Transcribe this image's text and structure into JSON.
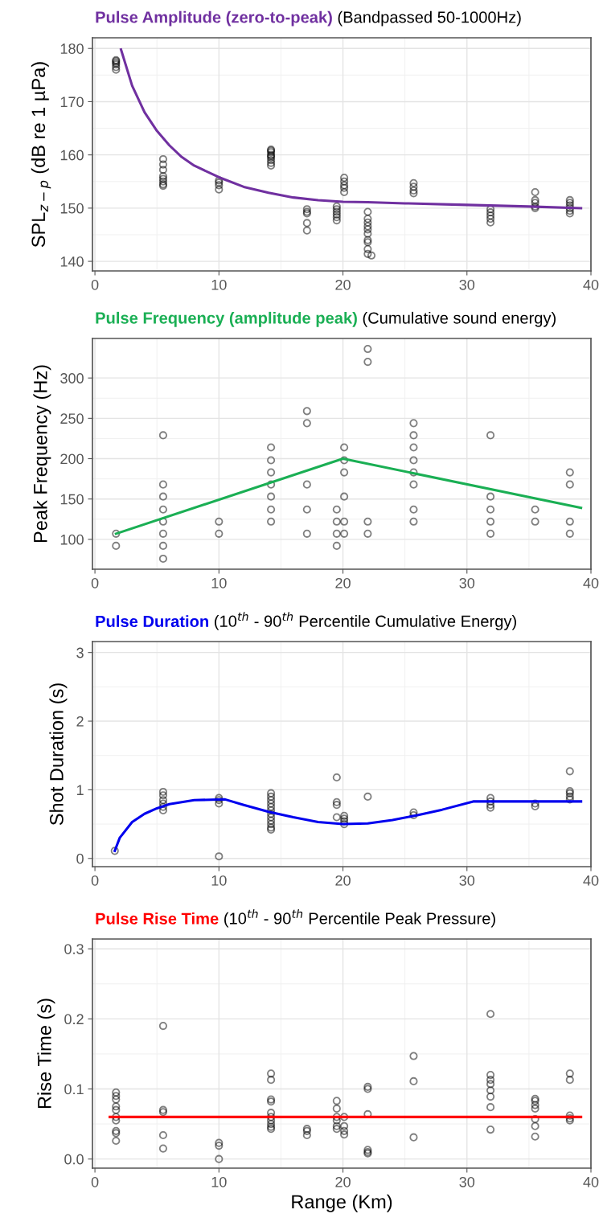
{
  "chart_data": [
    {
      "type": "scatter",
      "title": "Pulse Amplitude (zero-to-peak)",
      "subtitle": "(Bandpassed 50-1000Hz)",
      "ylabel": "SPL$_{z−p}$ (dB re 1 µPa)",
      "xlim": [
        -0.2,
        40
      ],
      "xticks": [
        0,
        10,
        20,
        30,
        40
      ],
      "ylim": [
        138.2,
        182
      ],
      "yticks": [
        140,
        150,
        160,
        170,
        180
      ],
      "grid": true,
      "series": [
        {
          "marker": "circle",
          "color": "#000000",
          "x": [
            1.7,
            1.7,
            1.7,
            1.7,
            1.7,
            1.7,
            5.5,
            5.5,
            5.5,
            5.5,
            5.5,
            5.5,
            5.5,
            5.5,
            10,
            10,
            10,
            10,
            14.2,
            14.2,
            14.2,
            14.2,
            14.2,
            14.2,
            14.2,
            14.2,
            14.2,
            17.1,
            17.1,
            17.1,
            17.1,
            17.1,
            19.5,
            19.5,
            19.5,
            19.5,
            19.5,
            19.5,
            20.1,
            20.1,
            20.1,
            20.1,
            20.1,
            22,
            22,
            22,
            22,
            22,
            22,
            22,
            22,
            22,
            22,
            22.3,
            25.7,
            25.7,
            25.7,
            25.7,
            31.9,
            31.9,
            31.9,
            31.9,
            31.9,
            35.5,
            35.5,
            35.5,
            35.5,
            35.5,
            38.3,
            38.3,
            38.3,
            38.3,
            38.3,
            38.3
          ],
          "values": [
            176,
            176.5,
            177,
            177.3,
            177.6,
            177.8,
            159.2,
            158.2,
            157.2,
            156,
            155.5,
            155,
            154.5,
            154.2,
            155.2,
            154.8,
            154.3,
            153.5,
            161,
            160.5,
            160,
            159.5,
            159,
            158.5,
            158,
            160.8,
            159.8,
            149.8,
            149.3,
            149,
            147.2,
            145.8,
            150.3,
            149.8,
            149.3,
            148.8,
            148.3,
            147.7,
            155.7,
            155,
            154.3,
            153.8,
            153,
            149.3,
            148,
            147.3,
            146.6,
            146,
            145.2,
            144,
            143.6,
            142.3,
            141.4,
            141.1,
            154.7,
            154,
            153.3,
            152.8,
            149.8,
            149.2,
            148.6,
            148,
            147.3,
            153,
            151.5,
            151,
            150.3,
            150,
            151.5,
            151,
            150.5,
            150,
            149.5,
            149
          ]
        },
        {
          "type": "line",
          "color": "#7030a0",
          "x": [
            2.1,
            3,
            4,
            5,
            6,
            7,
            8,
            10,
            12,
            14,
            16,
            18,
            20,
            22,
            25,
            30,
            35,
            39.2
          ],
          "values": [
            179.8,
            173,
            168,
            164.5,
            161.8,
            159.6,
            158,
            155.8,
            154,
            152.9,
            152,
            151.5,
            151.2,
            151.1,
            150.9,
            150.6,
            150.3,
            150
          ]
        }
      ]
    },
    {
      "type": "scatter",
      "title": "Pulse Frequency (amplitude peak)",
      "subtitle": "(Cumulative sound energy)",
      "ylabel": "Peak Frequency (Hz)",
      "xlim": [
        -0.2,
        40
      ],
      "xticks": [
        0,
        10,
        20,
        30,
        40
      ],
      "ylim": [
        63,
        349
      ],
      "yticks": [
        100,
        150,
        200,
        250,
        300
      ],
      "grid": true,
      "series": [
        {
          "marker": "circle",
          "color": "#000000",
          "x": [
            1.7,
            1.7,
            5.5,
            5.5,
            5.5,
            5.5,
            5.5,
            5.5,
            5.5,
            5.5,
            10,
            10,
            14.2,
            14.2,
            14.2,
            14.2,
            14.2,
            14.2,
            14.2,
            17.1,
            17.1,
            17.1,
            17.1,
            17.1,
            19.5,
            19.5,
            19.5,
            19.5,
            20.1,
            20.1,
            20.1,
            20.1,
            20.1,
            20.1,
            22,
            22,
            22,
            22,
            25.7,
            25.7,
            25.7,
            25.7,
            25.7,
            25.7,
            25.7,
            25.7,
            31.9,
            31.9,
            31.9,
            31.9,
            31.9,
            35.5,
            35.5,
            38.3,
            38.3,
            38.3,
            38.3
          ],
          "values": [
            107,
            92,
            229,
            168,
            153,
            137,
            122,
            107,
            92,
            76,
            122,
            107,
            214,
            198,
            183,
            168,
            153,
            137,
            122,
            259,
            244,
            168,
            137,
            107,
            137,
            122,
            107,
            92,
            214,
            198,
            183,
            153,
            122,
            107,
            336,
            320,
            122,
            107,
            244,
            229,
            214,
            198,
            183,
            168,
            137,
            122,
            229,
            153,
            137,
            122,
            107,
            137,
            122,
            183,
            168,
            122,
            107
          ]
        },
        {
          "type": "line",
          "color": "#1aaf54",
          "x": [
            1.7,
            20,
            39.2
          ],
          "values": [
            107,
            200,
            139
          ]
        }
      ]
    },
    {
      "type": "scatter",
      "title": "Pulse Duration",
      "subtitle": "(10$^{th}$ - 90$^{th}$ Percentile Cumulative Energy)",
      "ylabel": "Shot Duration (s)",
      "xlim": [
        -0.2,
        40
      ],
      "xticks": [
        0,
        10,
        20,
        30,
        40
      ],
      "ylim": [
        -0.12,
        3.16
      ],
      "yticks": [
        0,
        1,
        2,
        3
      ],
      "grid": true,
      "series": [
        {
          "marker": "circle",
          "color": "#000000",
          "x": [
            1.6,
            5.5,
            5.5,
            5.5,
            5.5,
            5.5,
            5.5,
            10,
            10,
            10,
            10,
            14.2,
            14.2,
            14.2,
            14.2,
            14.2,
            14.2,
            14.2,
            14.2,
            14.2,
            14.2,
            14.2,
            14.2,
            19.5,
            19.5,
            19.5,
            19.5,
            20.1,
            20.1,
            20.1,
            20.1,
            22,
            25.7,
            25.7,
            31.9,
            31.9,
            31.9,
            31.9,
            35.5,
            35.5,
            38.3,
            38.3,
            38.3,
            38.3,
            38.3
          ],
          "values": [
            0.11,
            0.97,
            0.92,
            0.85,
            0.8,
            0.75,
            0.7,
            0.88,
            0.85,
            0.8,
            0.03,
            0.95,
            0.9,
            0.85,
            0.8,
            0.75,
            0.7,
            0.65,
            0.6,
            0.55,
            0.5,
            0.45,
            0.42,
            1.18,
            0.82,
            0.78,
            0.6,
            0.62,
            0.58,
            0.54,
            0.5,
            0.9,
            0.67,
            0.63,
            0.88,
            0.83,
            0.78,
            0.74,
            0.8,
            0.76,
            1.27,
            0.98,
            0.95,
            0.9,
            0.86
          ]
        },
        {
          "type": "line",
          "color": "#0000ee",
          "x": [
            1.6,
            2,
            3,
            4,
            5,
            6,
            8,
            10.5,
            12,
            14,
            16,
            18,
            20,
            22,
            24,
            26,
            28,
            30.5,
            39.2
          ],
          "values": [
            0.11,
            0.3,
            0.53,
            0.65,
            0.73,
            0.79,
            0.85,
            0.86,
            0.78,
            0.68,
            0.6,
            0.53,
            0.5,
            0.51,
            0.56,
            0.63,
            0.71,
            0.83,
            0.83
          ]
        }
      ]
    },
    {
      "type": "scatter",
      "title": "Pulse Rise Time",
      "subtitle": "(10$^{th}$ - 90$^{th}$ Percentile Peak Pressure)",
      "xlabel": "Range (Km)",
      "ylabel": "Rise Time (s)",
      "xlim": [
        -0.2,
        40
      ],
      "xticks": [
        0,
        10,
        20,
        30,
        40
      ],
      "ylim": [
        -0.013,
        0.314
      ],
      "yticks": [
        {
          "value": 0,
          "label": "0.0"
        },
        0.1,
        0.2,
        0.3
      ],
      "grid": true,
      "series": [
        {
          "marker": "circle",
          "color": "#000000",
          "x": [
            1.7,
            1.7,
            1.7,
            1.7,
            1.7,
            1.7,
            1.7,
            1.7,
            1.7,
            1.7,
            5.5,
            5.5,
            5.5,
            5.5,
            5.5,
            10,
            10,
            10,
            14.2,
            14.2,
            14.2,
            14.2,
            14.2,
            14.2,
            14.2,
            14.2,
            14.2,
            14.2,
            17.1,
            17.1,
            17.1,
            19.5,
            19.5,
            19.5,
            19.5,
            19.5,
            19.5,
            20.1,
            20.1,
            20.1,
            20.1,
            22,
            22,
            22,
            22,
            22,
            22,
            25.7,
            25.7,
            25.7,
            31.9,
            31.9,
            31.9,
            31.9,
            31.9,
            31.9,
            31.9,
            31.9,
            35.5,
            35.5,
            35.5,
            35.5,
            35.5,
            35.5,
            35.5,
            38.3,
            38.3,
            38.3,
            38.3,
            38.3
          ],
          "values": [
            0.095,
            0.09,
            0.085,
            0.075,
            0.07,
            0.06,
            0.055,
            0.04,
            0.037,
            0.026,
            0.19,
            0.07,
            0.067,
            0.034,
            0.015,
            0.023,
            0.019,
            0.0,
            0.122,
            0.113,
            0.085,
            0.082,
            0.066,
            0.06,
            0.055,
            0.05,
            0.046,
            0.043,
            0.043,
            0.04,
            0.034,
            0.083,
            0.072,
            0.06,
            0.055,
            0.047,
            0.043,
            0.06,
            0.047,
            0.04,
            0.035,
            0.103,
            0.1,
            0.064,
            0.013,
            0.01,
            0.008,
            0.147,
            0.111,
            0.031,
            0.207,
            0.12,
            0.113,
            0.107,
            0.098,
            0.089,
            0.074,
            0.042,
            0.086,
            0.083,
            0.077,
            0.072,
            0.057,
            0.047,
            0.032,
            0.122,
            0.113,
            0.062,
            0.058,
            0.055
          ]
        },
        {
          "type": "line",
          "color": "#ff0000",
          "x": [
            1.2,
            39.2
          ],
          "values": [
            0.06,
            0.06
          ]
        }
      ]
    }
  ]
}
